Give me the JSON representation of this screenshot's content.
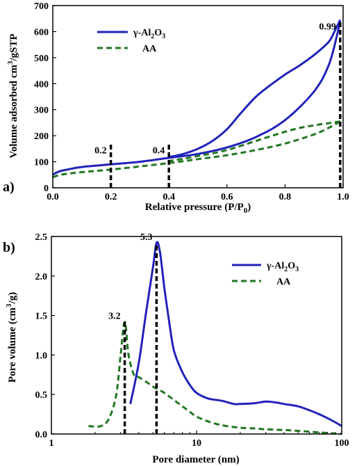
{
  "colors": {
    "gamma": "#2222bb",
    "aa": "#227722",
    "marker": "#000000"
  },
  "chart_data": [
    {
      "type": "line",
      "panel_label": "a)",
      "xlabel": "Relative pressure (P/P",
      "xlabel_sub": "0",
      "xlabel_end": ")",
      "ylabel": "Volume adsorbed cm",
      "ylabel_sup": "3",
      "ylabel_end": "/gSTP",
      "xlim": [
        0.0,
        1.0
      ],
      "ylim": [
        0,
        700
      ],
      "xticks": [
        "0.0",
        "0.2",
        "0.4",
        "0.6",
        "0.8",
        "1.0"
      ],
      "xtick_values": [
        0,
        0.2,
        0.4,
        0.6,
        0.8,
        1.0
      ],
      "yticks": [
        "0",
        "100",
        "200",
        "300",
        "400",
        "500",
        "600",
        "700"
      ],
      "ytick_values": [
        0,
        100,
        200,
        300,
        400,
        500,
        600,
        700
      ],
      "legend_position": "top-left",
      "legend": [
        {
          "base": "γ-Al",
          "sub1": "2",
          "mid": "O",
          "sub2": "3"
        },
        {
          "base": "AA"
        }
      ],
      "markers": [
        {
          "x": 0.2,
          "y_top": 170,
          "label": "0.2",
          "label_side": "left"
        },
        {
          "x": 0.4,
          "y_top": 170,
          "label": "0.4",
          "label_side": "left"
        },
        {
          "x": 0.99,
          "y_top": 645,
          "label": "0.99",
          "label_side": "left"
        }
      ],
      "series": [
        {
          "name": "γ-Al2O3 adsorption",
          "x": [
            0.0,
            0.02,
            0.05,
            0.1,
            0.2,
            0.3,
            0.4,
            0.5,
            0.6,
            0.7,
            0.8,
            0.9,
            0.95,
            0.98,
            0.99
          ],
          "y": [
            50,
            62,
            70,
            80,
            90,
            100,
            115,
            130,
            155,
            195,
            260,
            370,
            470,
            590,
            645
          ]
        },
        {
          "name": "γ-Al2O3 desorption",
          "x": [
            0.99,
            0.97,
            0.95,
            0.9,
            0.85,
            0.8,
            0.75,
            0.7,
            0.65,
            0.6,
            0.55,
            0.5,
            0.45,
            0.4
          ],
          "y": [
            645,
            600,
            560,
            510,
            470,
            435,
            395,
            350,
            290,
            225,
            180,
            150,
            130,
            118
          ]
        },
        {
          "name": "AA adsorption",
          "x": [
            0.0,
            0.02,
            0.05,
            0.1,
            0.2,
            0.3,
            0.4,
            0.5,
            0.6,
            0.7,
            0.8,
            0.9,
            0.95,
            0.99
          ],
          "y": [
            40,
            48,
            54,
            60,
            70,
            82,
            95,
            110,
            125,
            145,
            170,
            205,
            230,
            255
          ]
        },
        {
          "name": "AA desorption",
          "x": [
            0.99,
            0.95,
            0.9,
            0.85,
            0.8,
            0.75,
            0.7,
            0.65,
            0.6,
            0.55,
            0.5,
            0.45,
            0.4
          ],
          "y": [
            255,
            248,
            240,
            230,
            215,
            198,
            180,
            162,
            145,
            132,
            122,
            112,
            103
          ]
        }
      ]
    },
    {
      "type": "line",
      "panel_label": "b)",
      "xlabel": "Pore diameter (nm)",
      "ylabel": "Pore volume (cm",
      "ylabel_sup": "3",
      "ylabel_end": "/g)",
      "xscale": "log",
      "xlim": [
        1,
        100
      ],
      "ylim": [
        0,
        2.5
      ],
      "xticks": [
        "1",
        "10",
        "100"
      ],
      "xtick_values": [
        1,
        10,
        100
      ],
      "yticks": [
        "0.0",
        "0.5",
        "1.0",
        "1.5",
        "2.0",
        "2.5"
      ],
      "ytick_values": [
        0,
        0.5,
        1.0,
        1.5,
        2.0,
        2.5
      ],
      "legend_position": "top-right",
      "legend": [
        {
          "base": "γ-Al",
          "sub1": "2",
          "mid": "O",
          "sub2": "3"
        },
        {
          "base": "AA"
        }
      ],
      "markers": [
        {
          "x": 3.2,
          "y_top": 1.42,
          "label": "3.2",
          "label_side": "left"
        },
        {
          "x": 5.3,
          "y_top": 2.42,
          "label": "5.3",
          "label_side": "left"
        }
      ],
      "series": [
        {
          "name": "γ-Al2O3",
          "x": [
            3.5,
            4.0,
            4.5,
            5.0,
            5.3,
            5.6,
            6.0,
            6.5,
            7.0,
            8.0,
            9.0,
            10.0,
            12.0,
            15.0,
            18.0,
            20.0,
            25.0,
            30.0,
            35.0,
            40.0,
            50.0,
            60.0,
            70.0,
            80.0,
            90.0,
            100.0
          ],
          "y": [
            0.38,
            0.9,
            1.55,
            2.1,
            2.42,
            2.3,
            1.85,
            1.4,
            1.05,
            0.78,
            0.62,
            0.52,
            0.45,
            0.42,
            0.38,
            0.38,
            0.39,
            0.41,
            0.4,
            0.38,
            0.35,
            0.3,
            0.25,
            0.2,
            0.15,
            0.1
          ]
        },
        {
          "name": "AA",
          "x": [
            1.8,
            2.2,
            2.5,
            2.8,
            3.0,
            3.2,
            3.4,
            3.7,
            4.0,
            4.5,
            5.0,
            5.5,
            6.0,
            7.0,
            8.0,
            9.0,
            10.0,
            12.0,
            15.0,
            20.0,
            25.0,
            30.0,
            40.0,
            50.0,
            70.0,
            100.0
          ],
          "y": [
            0.1,
            0.1,
            0.2,
            0.5,
            1.0,
            1.42,
            1.0,
            0.75,
            0.72,
            0.66,
            0.6,
            0.56,
            0.52,
            0.43,
            0.35,
            0.28,
            0.22,
            0.16,
            0.11,
            0.08,
            0.07,
            0.06,
            0.05,
            0.04,
            0.02,
            0.0
          ]
        }
      ]
    }
  ]
}
